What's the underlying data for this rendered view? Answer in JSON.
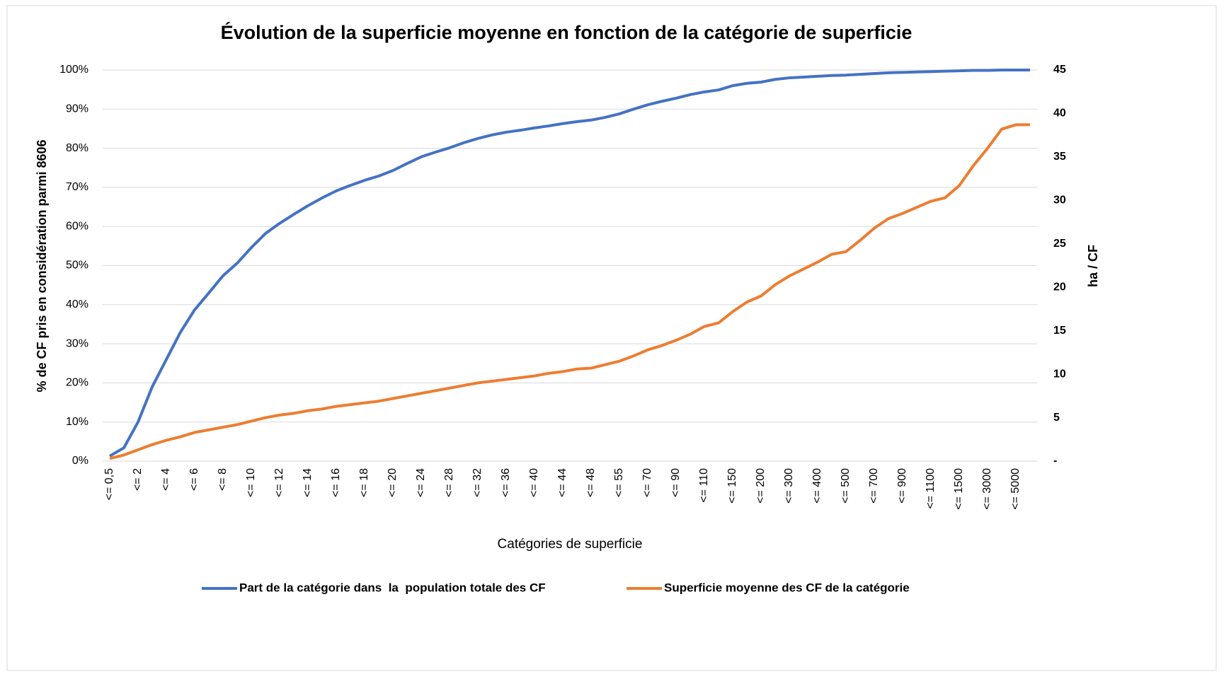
{
  "chart_data": {
    "type": "line",
    "title": "Évolution de la superficie moyenne en fonction de la catégorie de superficie",
    "x_label": "Catégories de superficie",
    "y_label": "% de CF pris en considération parmi 8606",
    "y2_label": "ha / CF",
    "categories": [
      "<= 0,5",
      null,
      "<= 2",
      null,
      "<= 4",
      null,
      "<= 6",
      null,
      "<= 8",
      null,
      "<= 10",
      null,
      "<= 12",
      null,
      "<= 14",
      null,
      "<= 16",
      null,
      "<= 18",
      null,
      "<= 20",
      null,
      "<= 24",
      null,
      "<= 28",
      null,
      "<= 32",
      null,
      "<= 36",
      null,
      "<= 40",
      null,
      "<= 44",
      null,
      "<= 48",
      null,
      "<= 55",
      null,
      "<= 70",
      null,
      "<= 90",
      null,
      "<= 110",
      null,
      "<= 150",
      null,
      "<= 200",
      null,
      "<= 300",
      null,
      "<= 400",
      null,
      "<= 500",
      null,
      "<= 700",
      null,
      "<= 900",
      null,
      "<= 1100",
      null,
      "<= 1500",
      null,
      "<= 3000",
      null,
      "<= 5000",
      null
    ],
    "series": [
      {
        "name": "Part de la catégorie dans  la  population totale des CF",
        "color": "#4472c4",
        "values": [
          1.3,
          3.4,
          10,
          19,
          26,
          33,
          38.7,
          43,
          47.4,
          50.6,
          54.6,
          58.2,
          60.8,
          63.1,
          65.3,
          67.3,
          69.1,
          70.5,
          71.8,
          72.9,
          74.3,
          76.1,
          77.8,
          79,
          80.1,
          81.4,
          82.5,
          83.4,
          84.1,
          84.6,
          85.2,
          85.7,
          86.3,
          86.8,
          87.2,
          87.9,
          88.8,
          90,
          91.1,
          92,
          92.8,
          93.7,
          94.4,
          94.9,
          96,
          96.6,
          96.9,
          97.6,
          98,
          98.2,
          98.4,
          98.6,
          98.7,
          98.9,
          99.1,
          99.3,
          99.4,
          99.5,
          99.6,
          99.7,
          99.8,
          99.9,
          99.9,
          100,
          100,
          100
        ]
      },
      {
        "name": "Superficie moyenne des CF de la catégorie",
        "color": "#ed7d31",
        "axis": "y2",
        "values": [
          0.3,
          0.7,
          1.3,
          1.9,
          2.4,
          2.8,
          3.3,
          3.6,
          3.9,
          4.2,
          4.6,
          5.0,
          5.3,
          5.5,
          5.8,
          6.0,
          6.3,
          6.5,
          6.7,
          6.9,
          7.2,
          7.5,
          7.8,
          8.1,
          8.4,
          8.7,
          9.0,
          9.2,
          9.4,
          9.6,
          9.8,
          10.1,
          10.3,
          10.6,
          10.7,
          11.1,
          11.5,
          12.1,
          12.8,
          13.3,
          13.9,
          14.6,
          15.5,
          15.9,
          17.2,
          18.3,
          19.0,
          20.3,
          21.3,
          22.1,
          22.9,
          23.8,
          24.1,
          25.4,
          26.8,
          27.9,
          28.5,
          29.2,
          29.9,
          30.3,
          31.7,
          34.0,
          36.0,
          38.2,
          38.7,
          38.7
        ]
      }
    ],
    "ylim": [
      0,
      100
    ],
    "yticks": [
      {
        "value": 0,
        "label": "0%"
      },
      {
        "value": 10,
        "label": "10%"
      },
      {
        "value": 20,
        "label": "20%"
      },
      {
        "value": 30,
        "label": "30%"
      },
      {
        "value": 40,
        "label": "40%"
      },
      {
        "value": 50,
        "label": "50%"
      },
      {
        "value": 60,
        "label": "60%"
      },
      {
        "value": 70,
        "label": "70%"
      },
      {
        "value": 80,
        "label": "80%"
      },
      {
        "value": 90,
        "label": "90%"
      },
      {
        "value": 100,
        "label": "100%"
      }
    ],
    "y2lim": [
      0,
      45
    ],
    "y2ticks": [
      {
        "value": 0,
        "label": "-"
      },
      5,
      10,
      15,
      20,
      25,
      30,
      35,
      40,
      45
    ],
    "grid": true,
    "legend": "bottom"
  }
}
